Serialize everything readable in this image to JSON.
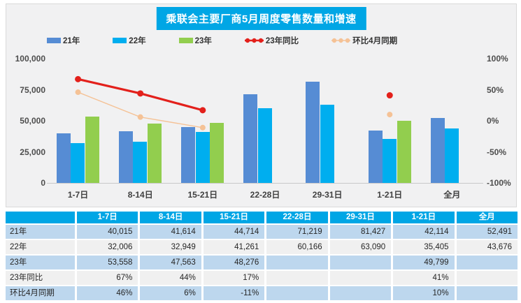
{
  "title": "乘联会主要厂商5月周度零售数量和增速",
  "legend": [
    {
      "label": "21年",
      "type": "bar",
      "color": "#568CD4"
    },
    {
      "label": "22年",
      "type": "bar",
      "color": "#00AEEF"
    },
    {
      "label": "23年",
      "type": "bar",
      "color": "#92CE4E"
    },
    {
      "label": "23年同比",
      "type": "line",
      "color": "#E3201B"
    },
    {
      "label": "环比4月同期",
      "type": "line",
      "color": "#F5C296"
    }
  ],
  "chart_data": {
    "type": "bar+line",
    "title": "乘联会主要厂商5月周度零售数量和增速",
    "categories": [
      "1-7日",
      "8-14日",
      "15-21日",
      "22-28日",
      "29-31日",
      "1-21日",
      "全月"
    ],
    "bar_series": [
      {
        "name": "21年",
        "color": "#568CD4",
        "values": [
          40015,
          41614,
          44714,
          71219,
          81427,
          42114,
          52491
        ]
      },
      {
        "name": "22年",
        "color": "#00AEEF",
        "values": [
          32006,
          32949,
          41261,
          60166,
          63090,
          35405,
          43676
        ]
      },
      {
        "name": "23年",
        "color": "#92CE4E",
        "values": [
          53558,
          47563,
          48276,
          null,
          null,
          49799,
          null
        ]
      }
    ],
    "line_series": [
      {
        "name": "23年同比",
        "color": "#E3201B",
        "stroke_width": 3.2,
        "marker_r": 4.5,
        "values": [
          67,
          44,
          17,
          null,
          null,
          41,
          null
        ]
      },
      {
        "name": "环比4月同期",
        "color": "#F5C296",
        "stroke_width": 1.4,
        "marker_r": 4,
        "values": [
          46,
          6,
          -11,
          null,
          null,
          10,
          null
        ]
      }
    ],
    "left_axis": {
      "ticks": [
        "0",
        "25,000",
        "50,000",
        "75,000",
        "100,000"
      ],
      "min": 0,
      "max": 100000
    },
    "right_axis": {
      "ticks": [
        "-100%",
        "-50%",
        "0%",
        "50%",
        "100%"
      ],
      "min": -100,
      "max": 100
    },
    "grid": false,
    "legend_position": "top"
  },
  "table": {
    "columns": [
      "",
      "1-7日",
      "8-14日",
      "15-21日",
      "22-28日",
      "29-31日",
      "1-21日",
      "全月"
    ],
    "rows": [
      {
        "label": "21年",
        "values": [
          "40,015",
          "41,614",
          "44,714",
          "71,219",
          "81,427",
          "42,114",
          "52,491"
        ]
      },
      {
        "label": "22年",
        "values": [
          "32,006",
          "32,949",
          "41,261",
          "60,166",
          "63,090",
          "35,405",
          "43,676"
        ]
      },
      {
        "label": "23年",
        "values": [
          "53,558",
          "47,563",
          "48,276",
          "",
          "",
          "49,799",
          ""
        ]
      },
      {
        "label": "23年同比",
        "values": [
          "67%",
          "44%",
          "17%",
          "",
          "",
          "41%",
          ""
        ]
      },
      {
        "label": "环比4月同期",
        "values": [
          "46%",
          "6%",
          "-11%",
          "",
          "",
          "10%",
          ""
        ]
      }
    ]
  },
  "colors": {
    "accent_cyan": "#00A6E5",
    "panel_bg": "#F1F1F2",
    "panel_border": "#D9D9D9",
    "stripe_blue": "#BDD7EE",
    "stripe_gray": "#F0F0F0",
    "axis_text": "#4d4d4d",
    "baseline": "#C9C9C9"
  }
}
